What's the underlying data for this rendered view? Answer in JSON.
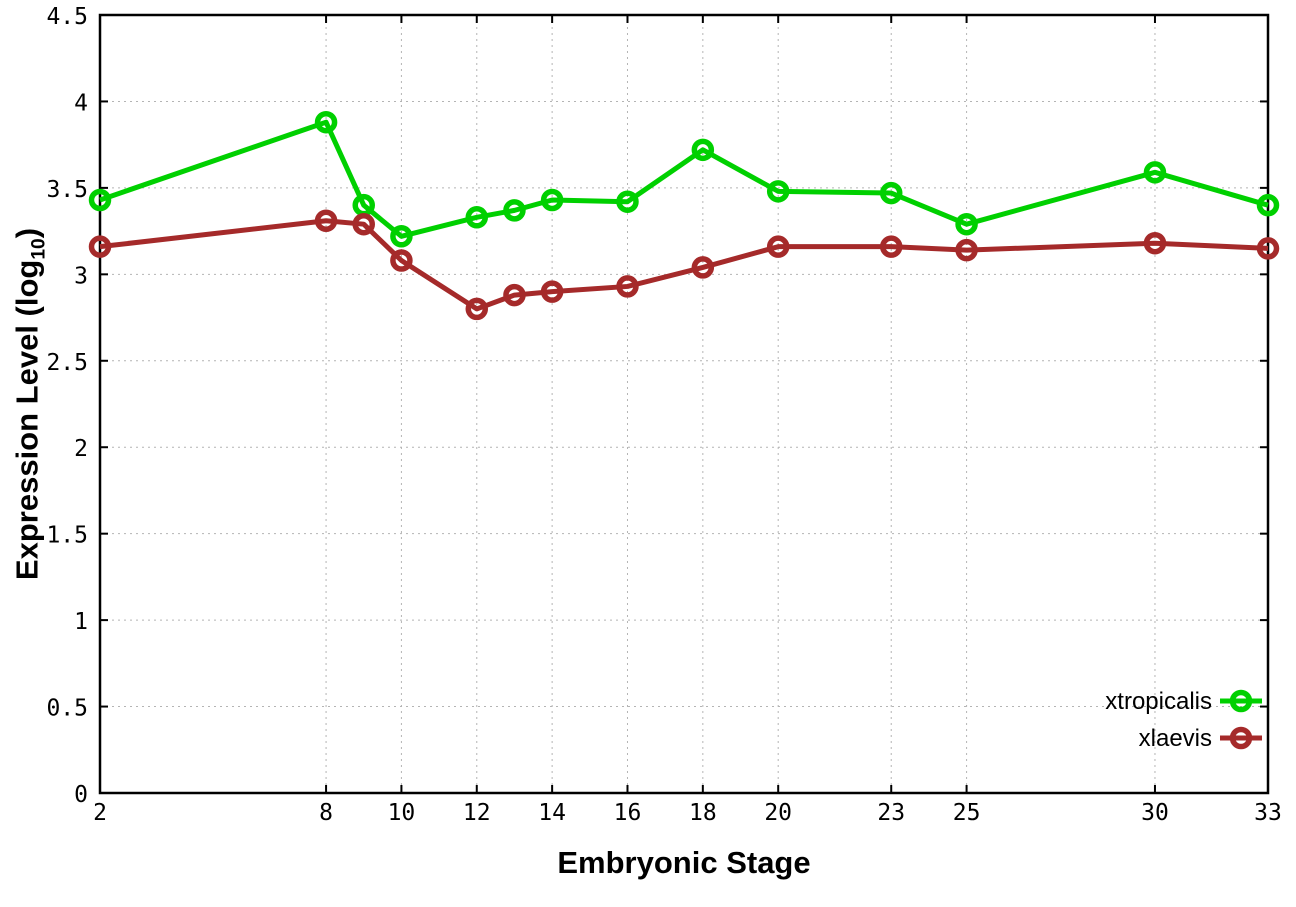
{
  "chart_data": {
    "type": "line",
    "title": "",
    "xlabel": "Embryonic Stage",
    "ylabel": "Expression Level (log10)",
    "ylabel_parts": {
      "prefix": "Expression Level (log",
      "sub": "10",
      "suffix": ")"
    },
    "xlim": [
      2,
      33
    ],
    "ylim": [
      0,
      4.5
    ],
    "grid": true,
    "grid_color": "#b4b4b4",
    "background_color": "#ffffff",
    "border_color": "#000000",
    "marker": "open-circle",
    "legend_position": "bottom-right",
    "xtick_values": [
      2,
      8,
      10,
      12,
      14,
      16,
      18,
      20,
      23,
      25,
      30,
      33
    ],
    "xtick_labels": [
      "2",
      "8",
      "10",
      "12",
      "14",
      "16",
      "18",
      "20",
      "23",
      "25",
      "30",
      "33"
    ],
    "ytick_values": [
      0,
      0.5,
      1,
      1.5,
      2,
      2.5,
      3,
      3.5,
      4,
      4.5
    ],
    "ytick_labels": [
      "0",
      "0.5",
      "1",
      "1.5",
      "2",
      "2.5",
      "3",
      "3.5",
      "4",
      "4.5"
    ],
    "x": [
      2,
      8,
      9,
      10,
      12,
      13,
      14,
      16,
      18,
      20,
      23,
      25,
      30,
      33
    ],
    "series": [
      {
        "name": "xtropicalis",
        "color": "#00d000",
        "values": [
          3.43,
          3.88,
          3.4,
          3.22,
          3.33,
          3.37,
          3.43,
          3.42,
          3.72,
          3.48,
          3.47,
          3.29,
          3.59,
          3.4
        ]
      },
      {
        "name": "xlaevis",
        "color": "#a52a2a",
        "values": [
          3.16,
          3.31,
          3.29,
          3.08,
          2.8,
          2.88,
          2.9,
          2.93,
          3.04,
          3.16,
          3.16,
          3.14,
          3.18,
          3.15
        ]
      }
    ]
  }
}
